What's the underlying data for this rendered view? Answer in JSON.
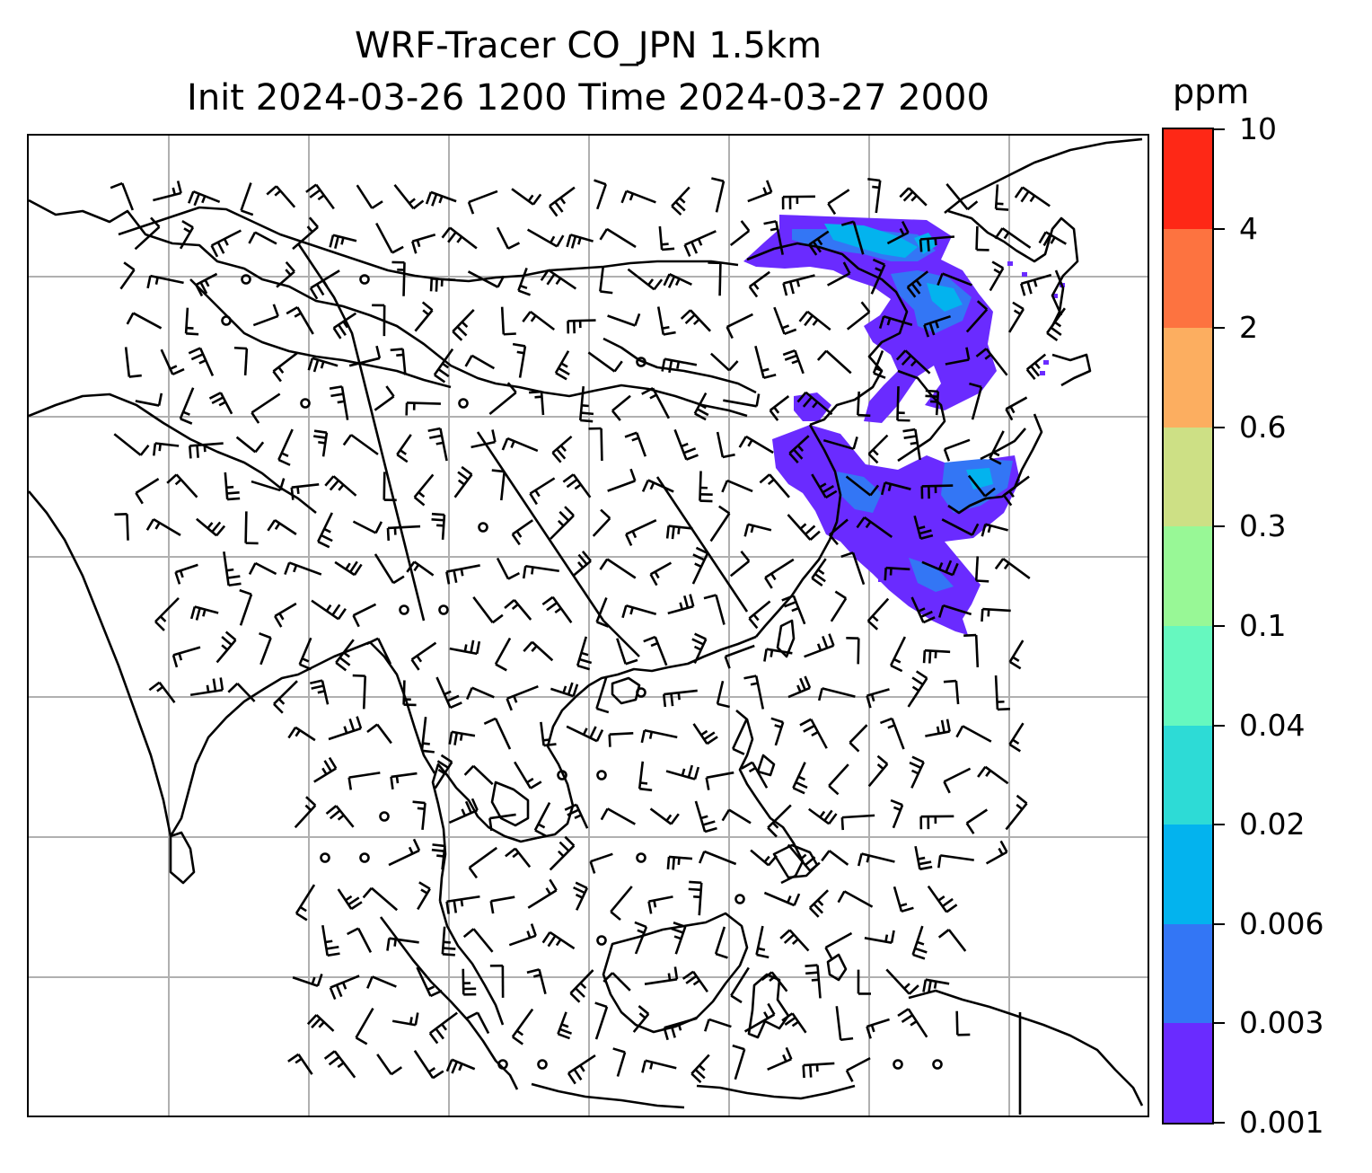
{
  "title": {
    "line1": "WRF-Tracer CO_JPN 1.5km",
    "line2": "Init 2024-03-26 1200 Time 2024-03-27 2000"
  },
  "colorbar": {
    "unit": "ppm",
    "ticks": [
      "0.001",
      "0.003",
      "0.006",
      "0.02",
      "0.04",
      "0.1",
      "0.3",
      "0.6",
      "2",
      "4",
      "10"
    ],
    "colors": [
      "#6a2bff",
      "#3376f5",
      "#03b3ee",
      "#2ddbd6",
      "#66f8bf",
      "#98f896",
      "#cde085",
      "#fcae60",
      "#fd7340",
      "#fe2816"
    ]
  },
  "map": {
    "colors": {
      "coast": "#000000",
      "grid": "#b0b0b0",
      "barb": "#000000",
      "tracer_low": "#6a2bff",
      "tracer_mid": "#3376f5",
      "tracer_high": "#03b3ee"
    }
  }
}
